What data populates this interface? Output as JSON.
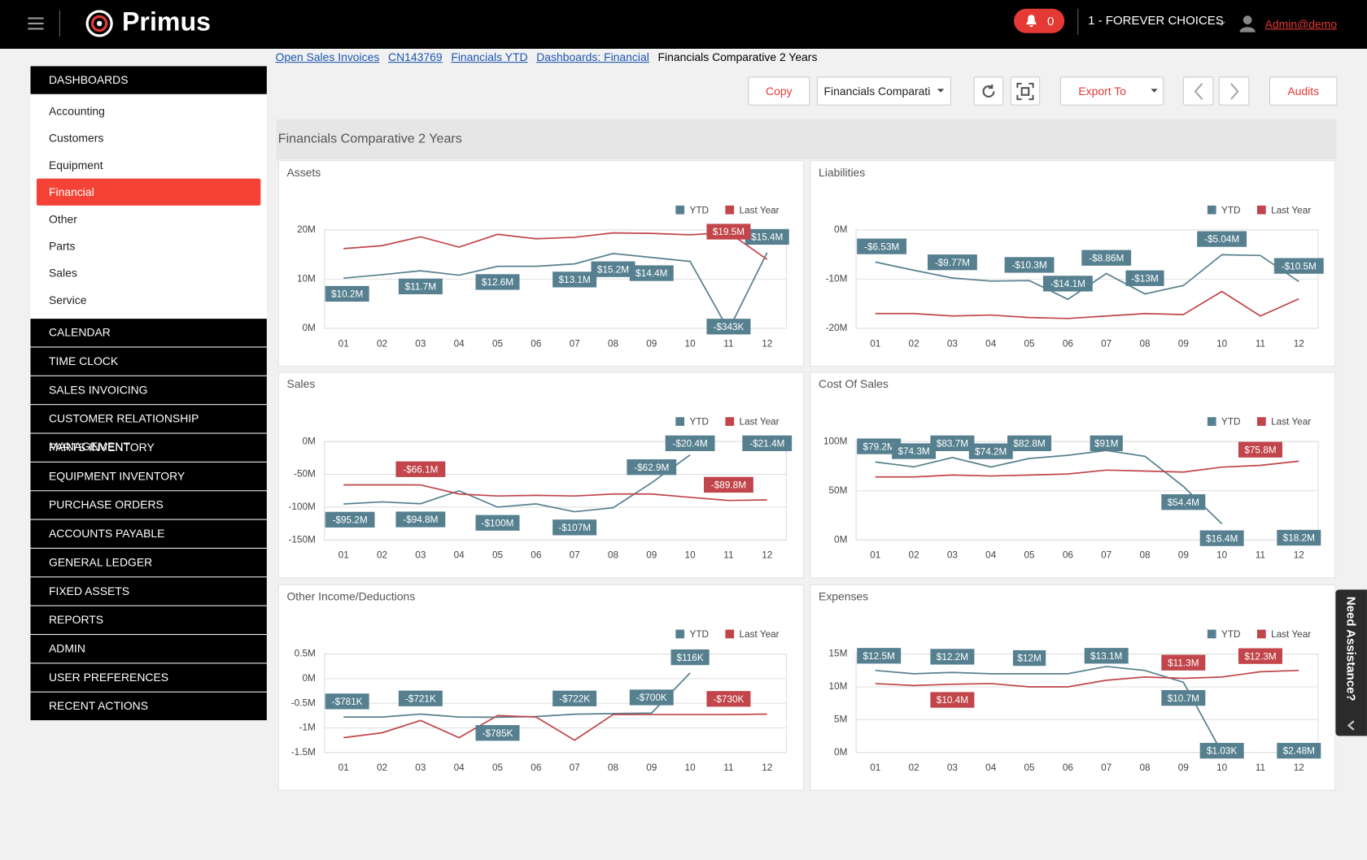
{
  "header": {
    "brand": "Primus",
    "notifications": "0",
    "company": "1 - FOREVER CHOICES",
    "user": "Admin@demo"
  },
  "breadcrumb": [
    "Open Sales Invoices",
    "CN143769",
    "Financials YTD",
    "Dashboards: Financial",
    "Financials Comparative 2 Years"
  ],
  "sidebar": {
    "title": "DASHBOARDS",
    "items": [
      "Accounting",
      "Customers",
      "Equipment",
      "Financial",
      "Other",
      "Parts",
      "Sales",
      "Service"
    ],
    "active": 3,
    "sections": [
      "CALENDAR",
      "TIME CLOCK",
      "SALES INVOICING",
      "CUSTOMER RELATIONSHIP MANAGEMENT",
      "PARTS INVENTORY",
      "EQUIPMENT INVENTORY",
      "PURCHASE ORDERS",
      "ACCOUNTS PAYABLE",
      "GENERAL LEDGER",
      "FIXED ASSETS",
      "REPORTS",
      "ADMIN",
      "USER PREFERENCES",
      "RECENT ACTIONS"
    ]
  },
  "toolbar": {
    "copy": "Copy",
    "view": "Financials Comparati",
    "export": "Export To",
    "audits": "Audits"
  },
  "panel_title": "Financials Comparative 2 Years",
  "help": "Need Assistance?",
  "chart_data": [
    {
      "type": "line",
      "title": "Assets",
      "categories": [
        "01",
        "02",
        "03",
        "04",
        "05",
        "06",
        "07",
        "08",
        "09",
        "10",
        "11",
        "12"
      ],
      "ylim": [
        0,
        20
      ],
      "yticks": [
        {
          "value": 0,
          "label": "0M"
        },
        {
          "value": 10,
          "label": "10M"
        },
        {
          "value": 20,
          "label": "20M"
        }
      ],
      "grid": true,
      "legend": "top-right",
      "series": [
        {
          "name": "YTD",
          "color": "#56808f",
          "values": [
            10.2,
            10.9,
            11.7,
            10.8,
            12.6,
            12.6,
            13.1,
            15.2,
            14.4,
            13.6,
            -0.343,
            15.4
          ],
          "value_labels": [
            "$10.2M",
            null,
            "$11.7M",
            null,
            "$12.6M",
            null,
            "$13.1M",
            "$15.2M",
            "$14.4M",
            null,
            "-$343K",
            "$15.4M"
          ]
        },
        {
          "name": "Last Year",
          "color": "#c1454a",
          "values": [
            16.2,
            16.8,
            18.6,
            16.5,
            19.1,
            18.2,
            18.5,
            19.4,
            19.3,
            19.0,
            19.5,
            14
          ],
          "value_labels": [
            null,
            null,
            null,
            null,
            null,
            null,
            null,
            null,
            null,
            null,
            "$19.5M",
            null
          ]
        }
      ]
    },
    {
      "type": "line",
      "title": "Liabilities",
      "categories": [
        "01",
        "02",
        "03",
        "04",
        "05",
        "06",
        "07",
        "08",
        "09",
        "10",
        "11",
        "12"
      ],
      "ylim": [
        -20,
        0
      ],
      "yticks": [
        {
          "value": 0,
          "label": "0M"
        },
        {
          "value": -10,
          "label": "-10M"
        },
        {
          "value": -20,
          "label": "-20M"
        }
      ],
      "grid": true,
      "legend": "top-right",
      "series": [
        {
          "name": "YTD",
          "color": "#56808f",
          "values": [
            -6.53,
            -8.2,
            -9.77,
            -10.4,
            -10.3,
            -14.1,
            -8.86,
            -13,
            -11.3,
            -5.04,
            -5.2,
            -10.5
          ],
          "value_labels": [
            "-$6.53M",
            null,
            "-$9.77M",
            null,
            "-$10.3M",
            "-$14.1M",
            "-$8.86M",
            "-$13M",
            null,
            "-$5.04M",
            null,
            "-$10.5M"
          ]
        },
        {
          "name": "Last Year",
          "color": "#c1454a",
          "values": [
            -17,
            -17,
            -17.5,
            -17.3,
            -17.8,
            -18,
            -17.5,
            -17,
            -17.2,
            -12.5,
            -17.5,
            -14
          ]
        }
      ]
    },
    {
      "type": "line",
      "title": "Sales",
      "categories": [
        "01",
        "02",
        "03",
        "04",
        "05",
        "06",
        "07",
        "08",
        "09",
        "10",
        "11",
        "12"
      ],
      "ylim": [
        -150,
        0
      ],
      "yticks": [
        {
          "value": 0,
          "label": "0M"
        },
        {
          "value": -50,
          "label": "-50M"
        },
        {
          "value": -100,
          "label": "-100M"
        },
        {
          "value": -150,
          "label": "-150M"
        }
      ],
      "grid": true,
      "legend": "top-right",
      "series": [
        {
          "name": "YTD",
          "color": "#56808f",
          "values": [
            -95.2,
            -92,
            -94.8,
            -75,
            -100,
            -95,
            -107,
            -101,
            -62.9,
            -20.4,
            null,
            -21.4
          ],
          "value_labels": [
            "-$95.2M",
            null,
            "-$94.8M",
            null,
            "-$100M",
            null,
            "-$107M",
            null,
            "-$62.9M",
            "-$20.4M",
            null,
            "-$21.4M"
          ]
        },
        {
          "name": "Last Year",
          "color": "#c1454a",
          "values": [
            -66,
            -66,
            -66.1,
            -80,
            -83,
            -82,
            -83,
            -80,
            -80,
            -85,
            -89.8,
            -89
          ],
          "value_labels": [
            null,
            null,
            "-$66.1M",
            null,
            null,
            null,
            null,
            null,
            null,
            null,
            "-$89.8M",
            null
          ]
        }
      ]
    },
    {
      "type": "line",
      "title": "Cost Of Sales",
      "categories": [
        "01",
        "02",
        "03",
        "04",
        "05",
        "06",
        "07",
        "08",
        "09",
        "10",
        "11",
        "12"
      ],
      "ylim": [
        0,
        100
      ],
      "yticks": [
        {
          "value": 0,
          "label": "0M"
        },
        {
          "value": 50,
          "label": "50M"
        },
        {
          "value": 100,
          "label": "100M"
        }
      ],
      "grid": true,
      "legend": "top-right",
      "series": [
        {
          "name": "YTD",
          "color": "#56808f",
          "values": [
            79.2,
            74.3,
            83.7,
            74.2,
            82.8,
            86,
            91,
            85,
            54.4,
            16.4,
            null,
            18.2
          ],
          "value_labels": [
            "$79.2M",
            "$74.3M",
            "$83.7M",
            "$74.2M",
            "$82.8M",
            null,
            "$91M",
            null,
            "$54.4M",
            "$16.4M",
            null,
            "$18.2M"
          ]
        },
        {
          "name": "Last Year",
          "color": "#c1454a",
          "values": [
            64,
            64,
            66,
            65,
            66,
            67,
            71,
            70,
            69,
            74,
            75.8,
            80
          ],
          "value_labels": [
            null,
            null,
            null,
            null,
            null,
            null,
            null,
            null,
            null,
            null,
            "$75.8M",
            null
          ]
        }
      ]
    },
    {
      "type": "line",
      "title": "Other Income/Deductions",
      "categories": [
        "01",
        "02",
        "03",
        "04",
        "05",
        "06",
        "07",
        "08",
        "09",
        "10",
        "11",
        "12"
      ],
      "ylim": [
        -1.5,
        0.5
      ],
      "yticks": [
        {
          "value": 0.5,
          "label": "0.5M"
        },
        {
          "value": 0,
          "label": "0M"
        },
        {
          "value": -0.5,
          "label": "-0.5M"
        },
        {
          "value": -1,
          "label": "-1M"
        },
        {
          "value": -1.5,
          "label": "-1.5M"
        }
      ],
      "grid": true,
      "legend": "top-right",
      "series": [
        {
          "name": "YTD",
          "color": "#56808f",
          "values": [
            -0.781,
            -0.78,
            -0.721,
            -0.78,
            -0.785,
            -0.77,
            -0.722,
            -0.71,
            -0.7,
            0.116,
            null,
            null
          ],
          "value_labels": [
            "-$781K",
            null,
            "-$721K",
            null,
            "-$785K",
            null,
            "-$722K",
            null,
            "-$700K",
            "$116K",
            null,
            null
          ]
        },
        {
          "name": "Last Year",
          "color": "#c1454a",
          "values": [
            -1.2,
            -1.1,
            -0.85,
            -1.2,
            -0.75,
            -0.78,
            -1.25,
            -0.73,
            -0.73,
            -0.73,
            -0.73,
            -0.72
          ],
          "value_labels": [
            null,
            null,
            null,
            null,
            null,
            null,
            null,
            null,
            null,
            null,
            "-$730K",
            null
          ]
        }
      ]
    },
    {
      "type": "line",
      "title": "Expenses",
      "categories": [
        "01",
        "02",
        "03",
        "04",
        "05",
        "06",
        "07",
        "08",
        "09",
        "10",
        "11",
        "12"
      ],
      "ylim": [
        0,
        15
      ],
      "yticks": [
        {
          "value": 0,
          "label": "0M"
        },
        {
          "value": 5,
          "label": "5M"
        },
        {
          "value": 10,
          "label": "10M"
        },
        {
          "value": 15,
          "label": "15M"
        }
      ],
      "grid": true,
      "legend": "top-right",
      "series": [
        {
          "name": "YTD",
          "color": "#56808f",
          "values": [
            12.5,
            12,
            12.2,
            12,
            12,
            12,
            13.1,
            12.5,
            10.7,
            0.00103,
            null,
            2.48
          ],
          "value_labels": [
            "$12.5M",
            null,
            "$12.2M",
            null,
            "$12M",
            null,
            "$13.1M",
            null,
            "$10.7M",
            "$1.03K",
            null,
            "$2.48M"
          ]
        },
        {
          "name": "Last Year",
          "color": "#c1454a",
          "values": [
            10.5,
            10.2,
            10.4,
            10.5,
            10,
            10,
            11,
            11.5,
            11.3,
            11.5,
            12.3,
            12.5
          ],
          "value_labels": [
            null,
            null,
            "$10.4M",
            null,
            null,
            null,
            null,
            null,
            "$11.3M",
            null,
            "$12.3M",
            null
          ]
        }
      ]
    }
  ]
}
